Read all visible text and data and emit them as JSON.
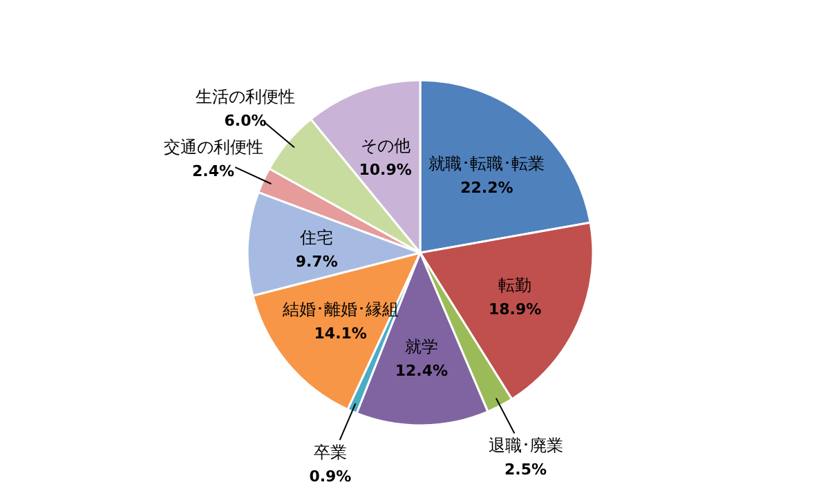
{
  "chart_data": {
    "type": "pie",
    "categories": [
      "就職･転職･転業",
      "転勤",
      "退職･廃業",
      "就学",
      "卒業",
      "結婚･離婚･縁組",
      "住宅",
      "交通の利便性",
      "生活の利便性",
      "その他"
    ],
    "values": [
      22.2,
      18.9,
      2.5,
      12.4,
      0.9,
      14.1,
      9.7,
      2.4,
      6.0,
      10.9
    ],
    "value_labels": [
      "22.2%",
      "18.9%",
      "2.5%",
      "12.4%",
      "0.9%",
      "14.1%",
      "9.7%",
      "2.4%",
      "6.0%",
      "10.9%"
    ],
    "colors": [
      "#4f81bd",
      "#c0504d",
      "#9bbb59",
      "#8064a2",
      "#4bacc6",
      "#f79646",
      "#a7bbe2",
      "#e59c9a",
      "#c8dca0",
      "#c9b4d8"
    ]
  }
}
